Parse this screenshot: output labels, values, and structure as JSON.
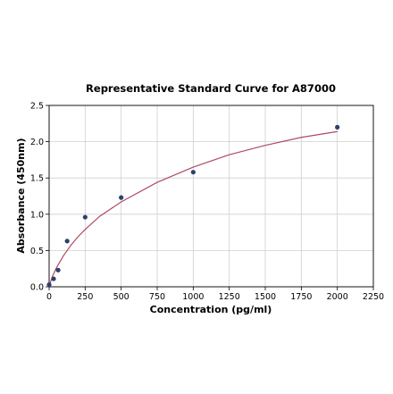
{
  "chart_data": {
    "type": "scatter",
    "title": "Representative Standard Curve for A87000",
    "xlabel": "Concentration (pg/ml)",
    "ylabel": "Absorbance (450nm)",
    "xlim": [
      0,
      2250
    ],
    "ylim": [
      0,
      2.5
    ],
    "xticks": [
      "0",
      "250",
      "500",
      "750",
      "1000",
      "1250",
      "1500",
      "1750",
      "2000",
      "2250"
    ],
    "yticks": [
      "0.0",
      "0.5",
      "1.0",
      "1.5",
      "2.0",
      "2.5"
    ],
    "grid": true,
    "series": [
      {
        "x": [
          0,
          31.25,
          62.5,
          125,
          250,
          500,
          1000,
          2000
        ],
        "y": [
          0.03,
          0.11,
          0.23,
          0.63,
          0.96,
          1.23,
          1.58,
          2.2
        ],
        "point_color": "#2e3f6e"
      }
    ],
    "fit_curve": {
      "color": "#b04a62",
      "x": [
        0,
        20,
        50,
        100,
        150,
        200,
        250,
        350,
        500,
        750,
        1000,
        1250,
        1500,
        1750,
        2000
      ],
      "y": [
        0.0,
        0.13,
        0.26,
        0.43,
        0.57,
        0.69,
        0.79,
        0.97,
        1.17,
        1.44,
        1.65,
        1.82,
        1.95,
        2.06,
        2.14
      ]
    }
  }
}
